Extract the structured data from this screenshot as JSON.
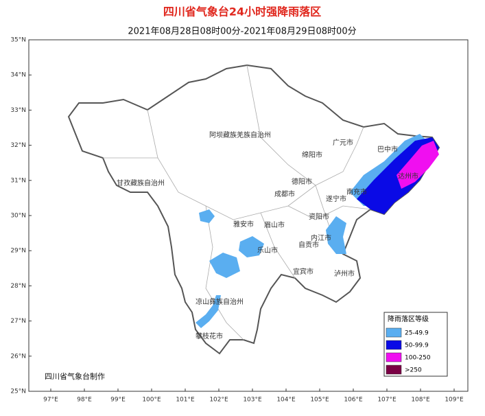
{
  "header": {
    "title": "四川省气象台24小时强降雨落区",
    "subtitle": "2021年08月28日08时00分-2021年08月29日08时00分"
  },
  "lat_labels": [
    "35°N",
    "34°N",
    "33°N",
    "32°N",
    "31°N",
    "30°N",
    "29°N",
    "28°N",
    "27°N",
    "26°N",
    "25°N"
  ],
  "lon_labels": [
    "97°E",
    "98°E",
    "99°E",
    "100°E",
    "101°E",
    "102°E",
    "103°E",
    "104°E",
    "105°E",
    "106°E",
    "107°E",
    "108°E",
    "109°E"
  ],
  "regions": [
    "阿坝藏族羌族自治州",
    "甘孜藏族自治州",
    "广元市",
    "巴中市",
    "绵阳市",
    "达州市",
    "德阳市",
    "南充市",
    "成都市",
    "遂宁市",
    "雅安市",
    "眉山市",
    "资阳市",
    "内江市",
    "乐山市",
    "自贡市",
    "宜宾市",
    "泸州市",
    "凉山彝族自治州",
    "攀枝花市"
  ],
  "legend": {
    "title": "降雨落区等级",
    "items": [
      {
        "label": "25-49.9",
        "color": "#5aaef0"
      },
      {
        "label": "50-99.9",
        "color": "#0a0ae6"
      },
      {
        "label": "100-250",
        "color": "#f00ff0"
      },
      {
        "label": ">250",
        "color": "#7a0044"
      }
    ]
  },
  "credit": "四川省气象台制作"
}
